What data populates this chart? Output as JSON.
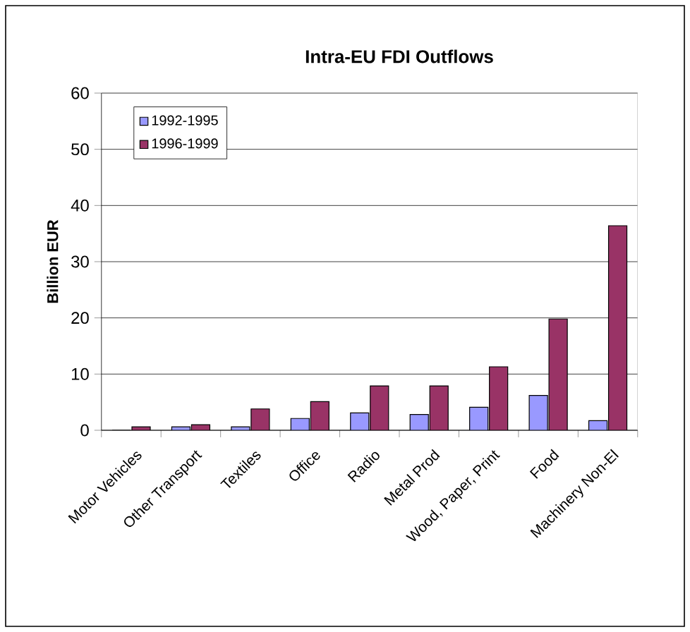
{
  "chart_data": {
    "type": "bar",
    "title": "Intra-EU FDI Outflows",
    "ylabel": "Billion EUR",
    "categories": [
      "Motor Vehicles",
      "Other Transport",
      "Textiles",
      "Office",
      "Radio",
      "Metal Prod",
      "Wood, Paper, Print",
      "Food",
      "Machinery Non-El"
    ],
    "series": [
      {
        "name": "1992-1995",
        "color": "#9999ff",
        "values": [
          0,
          0.6,
          0.6,
          2.1,
          3.1,
          2.8,
          4.1,
          6.2,
          1.7
        ]
      },
      {
        "name": "1996-1999",
        "color": "#993366",
        "values": [
          0.6,
          1.0,
          3.8,
          5.1,
          7.9,
          7.9,
          11.3,
          19.8,
          36.4
        ]
      }
    ],
    "ylim": [
      0,
      60
    ],
    "yticks": [
      0,
      10,
      20,
      30,
      40,
      50,
      60
    ],
    "grid": "y",
    "legend": "top left"
  }
}
